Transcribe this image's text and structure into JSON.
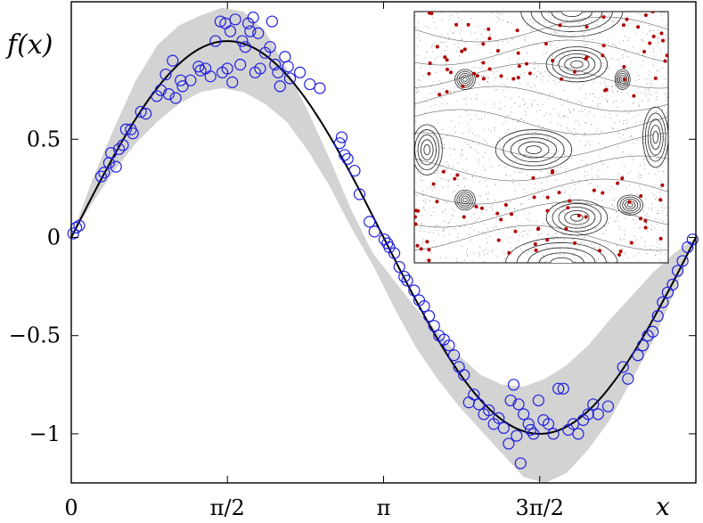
{
  "chart_data": {
    "type": "scatter",
    "title": "",
    "ylabel": "f(x)",
    "xlabel": "x",
    "xlim": [
      0,
      6.2832
    ],
    "ylim": [
      -1.25,
      1.2
    ],
    "xticks": [
      {
        "value": 0,
        "label": "0"
      },
      {
        "value": 1.5708,
        "label": "π/2"
      },
      {
        "value": 3.1416,
        "label": "π"
      },
      {
        "value": 4.7124,
        "label": "3π/2"
      }
    ],
    "yticks": [
      {
        "value": 0.5,
        "label": "0.5"
      },
      {
        "value": 0,
        "label": "0"
      },
      {
        "value": -0.5,
        "label": "−0.5"
      },
      {
        "value": -1,
        "label": "−1"
      }
    ],
    "grid": false,
    "series": [
      {
        "kind": "band",
        "color": "#d3d3d3",
        "lower": [
          0.0,
          0.18,
          0.34,
          0.48,
          0.59,
          0.68,
          0.74,
          0.76,
          0.74,
          0.68,
          0.59,
          0.44,
          0.26,
          0.05,
          -0.14,
          -0.36,
          -0.56,
          -0.72,
          -0.86,
          -0.98,
          -1.1,
          -1.22,
          -1.25,
          -1.2,
          -1.08,
          -0.93,
          -0.73,
          -0.53,
          -0.28,
          0.0
        ],
        "upper": [
          0.0,
          0.3,
          0.56,
          0.8,
          0.98,
          1.08,
          1.13,
          1.17,
          1.15,
          1.05,
          0.86,
          0.64,
          0.4,
          0.14,
          -0.08,
          -0.22,
          -0.36,
          -0.48,
          -0.6,
          -0.7,
          -0.75,
          -0.76,
          -0.72,
          -0.65,
          -0.55,
          -0.42,
          -0.3,
          -0.18,
          -0.08,
          0.0
        ]
      },
      {
        "kind": "line",
        "color": "#000000",
        "formula": "sin(x)"
      },
      {
        "kind": "scatter",
        "color": "#1f1fe0",
        "points": [
          [
            0.02,
            0.02
          ],
          [
            0.05,
            0.05
          ],
          [
            0.08,
            0.06
          ],
          [
            0.3,
            0.31
          ],
          [
            0.33,
            0.33
          ],
          [
            0.38,
            0.38
          ],
          [
            0.4,
            0.43
          ],
          [
            0.45,
            0.36
          ],
          [
            0.48,
            0.45
          ],
          [
            0.52,
            0.47
          ],
          [
            0.55,
            0.55
          ],
          [
            0.6,
            0.55
          ],
          [
            0.62,
            0.53
          ],
          [
            0.7,
            0.64
          ],
          [
            0.75,
            0.63
          ],
          [
            0.86,
            0.72
          ],
          [
            0.9,
            0.75
          ],
          [
            0.95,
            0.83
          ],
          [
            0.98,
            0.73
          ],
          [
            1.02,
            0.9
          ],
          [
            1.05,
            0.71
          ],
          [
            1.1,
            0.8
          ],
          [
            1.12,
            0.77
          ],
          [
            1.2,
            0.8
          ],
          [
            1.28,
            0.87
          ],
          [
            1.3,
            0.85
          ],
          [
            1.35,
            0.86
          ],
          [
            1.4,
            0.82
          ],
          [
            1.45,
            1.0
          ],
          [
            1.5,
            1.1
          ],
          [
            1.52,
            0.84
          ],
          [
            1.55,
            1.09
          ],
          [
            1.57,
            0.86
          ],
          [
            1.6,
            1.05
          ],
          [
            1.62,
            0.79
          ],
          [
            1.65,
            1.11
          ],
          [
            1.7,
            0.88
          ],
          [
            1.72,
            1.0
          ],
          [
            1.75,
            0.97
          ],
          [
            1.78,
            1.09
          ],
          [
            1.8,
            1.05
          ],
          [
            1.83,
            1.12
          ],
          [
            1.85,
            0.84
          ],
          [
            1.88,
            1.04
          ],
          [
            1.9,
            0.86
          ],
          [
            1.95,
            0.94
          ],
          [
            2.0,
            0.97
          ],
          [
            2.02,
            1.1
          ],
          [
            2.05,
            0.88
          ],
          [
            2.08,
            0.84
          ],
          [
            2.1,
            0.77
          ],
          [
            2.15,
            0.92
          ],
          [
            2.18,
            0.87
          ],
          [
            2.2,
            0.81
          ],
          [
            2.3,
            0.84
          ],
          [
            2.4,
            0.78
          ],
          [
            2.5,
            0.76
          ],
          [
            2.7,
            0.48
          ],
          [
            2.72,
            0.51
          ],
          [
            2.75,
            0.42
          ],
          [
            2.78,
            0.4
          ],
          [
            2.85,
            0.34
          ],
          [
            2.9,
            0.22
          ],
          [
            3.0,
            0.08
          ],
          [
            3.05,
            0.03
          ],
          [
            3.15,
            -0.01
          ],
          [
            3.18,
            -0.03
          ],
          [
            3.2,
            -0.05
          ],
          [
            3.25,
            -0.08
          ],
          [
            3.3,
            -0.15
          ],
          [
            3.35,
            -0.2
          ],
          [
            3.38,
            -0.22
          ],
          [
            3.45,
            -0.27
          ],
          [
            3.5,
            -0.32
          ],
          [
            3.55,
            -0.35
          ],
          [
            3.6,
            -0.4
          ],
          [
            3.65,
            -0.45
          ],
          [
            3.7,
            -0.5
          ],
          [
            3.75,
            -0.52
          ],
          [
            3.8,
            -0.55
          ],
          [
            3.85,
            -0.6
          ],
          [
            3.9,
            -0.66
          ],
          [
            3.95,
            -0.7
          ],
          [
            4.0,
            -0.84
          ],
          [
            4.05,
            -0.8
          ],
          [
            4.1,
            -0.85
          ],
          [
            4.15,
            -0.9
          ],
          [
            4.2,
            -0.88
          ],
          [
            4.25,
            -0.95
          ],
          [
            4.3,
            -0.92
          ],
          [
            4.35,
            -0.97
          ],
          [
            4.4,
            -1.05
          ],
          [
            4.42,
            -0.83
          ],
          [
            4.45,
            -0.75
          ],
          [
            4.48,
            -1.01
          ],
          [
            4.5,
            -0.85
          ],
          [
            4.52,
            -1.15
          ],
          [
            4.55,
            -0.9
          ],
          [
            4.6,
            -0.95
          ],
          [
            4.62,
            -0.98
          ],
          [
            4.65,
            -1.0
          ],
          [
            4.7,
            -0.83
          ],
          [
            4.75,
            -0.93
          ],
          [
            4.8,
            -0.95
          ],
          [
            4.85,
            -1.0
          ],
          [
            4.9,
            -0.77
          ],
          [
            4.95,
            -0.77
          ],
          [
            5.0,
            -0.98
          ],
          [
            5.05,
            -0.95
          ],
          [
            5.1,
            -1.0
          ],
          [
            5.15,
            -0.93
          ],
          [
            5.2,
            -0.9
          ],
          [
            5.25,
            -0.85
          ],
          [
            5.3,
            -0.9
          ],
          [
            5.4,
            -0.86
          ],
          [
            5.55,
            -0.66
          ],
          [
            5.6,
            -0.72
          ],
          [
            5.7,
            -0.6
          ],
          [
            5.75,
            -0.55
          ],
          [
            5.8,
            -0.5
          ],
          [
            5.85,
            -0.48
          ],
          [
            5.9,
            -0.4
          ],
          [
            5.95,
            -0.33
          ],
          [
            6.0,
            -0.28
          ],
          [
            6.05,
            -0.24
          ],
          [
            6.1,
            -0.17
          ],
          [
            6.15,
            -0.12
          ],
          [
            6.2,
            -0.05
          ],
          [
            6.25,
            -0.01
          ]
        ]
      }
    ],
    "inset": {
      "type": "phase-portrait",
      "islands": [
        {
          "x": 0.05,
          "y": 0.55,
          "rx": 0.06,
          "ry": 0.1
        },
        {
          "x": 0.47,
          "y": 0.55,
          "rx": 0.15,
          "ry": 0.08
        },
        {
          "x": 0.95,
          "y": 0.5,
          "rx": 0.05,
          "ry": 0.12
        },
        {
          "x": 0.2,
          "y": 0.27,
          "rx": 0.04,
          "ry": 0.04
        },
        {
          "x": 0.64,
          "y": 0.21,
          "rx": 0.12,
          "ry": 0.07
        },
        {
          "x": 0.82,
          "y": 0.27,
          "rx": 0.03,
          "ry": 0.04
        },
        {
          "x": 0.2,
          "y": 0.75,
          "rx": 0.04,
          "ry": 0.04
        },
        {
          "x": 0.64,
          "y": 0.82,
          "rx": 0.12,
          "ry": 0.07
        },
        {
          "x": 0.85,
          "y": 0.77,
          "rx": 0.05,
          "ry": 0.04
        },
        {
          "x": 0.62,
          "y": 0.0,
          "rx": 0.2,
          "ry": 0.1
        },
        {
          "x": 0.58,
          "y": 1.0,
          "rx": 0.22,
          "ry": 0.1
        }
      ],
      "marker_color": "#b00000"
    }
  }
}
